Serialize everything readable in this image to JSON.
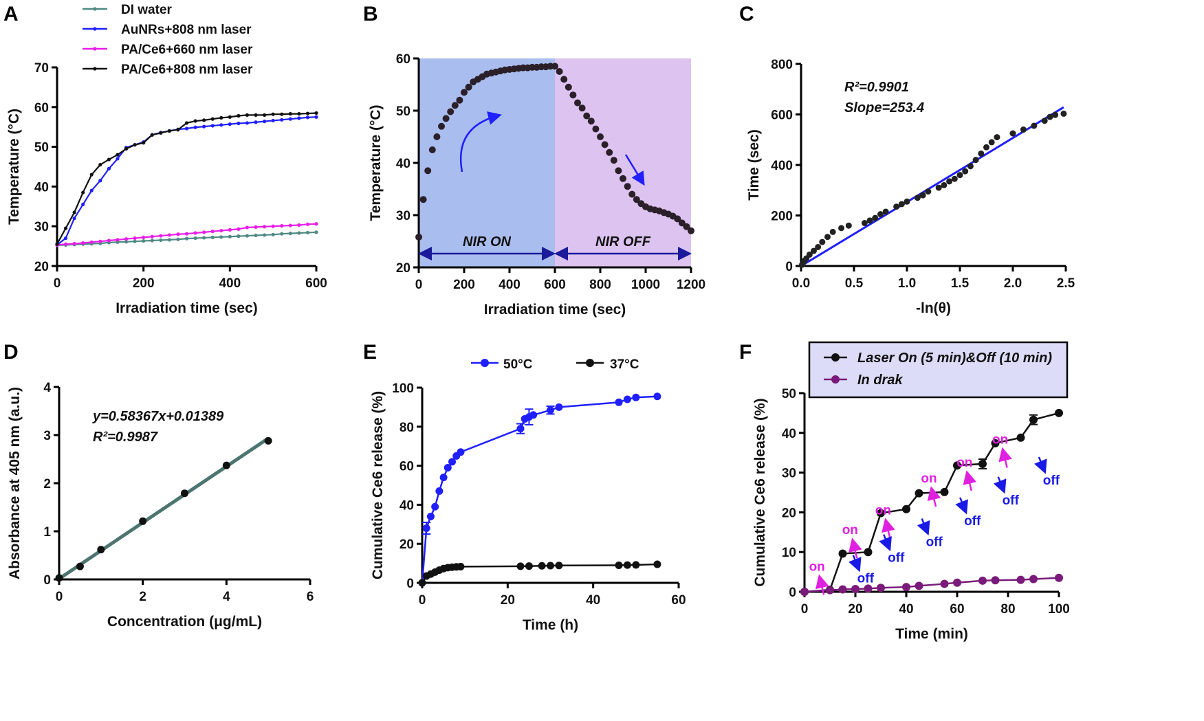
{
  "panels": [
    "A",
    "B",
    "C",
    "D",
    "E",
    "F"
  ],
  "chart_data": [
    {
      "panel": "A",
      "type": "line",
      "xlabel": "Irradiation time (sec)",
      "ylabel": "Temperature (°C)",
      "xlim": [
        0,
        600
      ],
      "ylim": [
        20,
        70
      ],
      "xticks": [
        "0",
        "200",
        "400",
        "600"
      ],
      "yticks": [
        "20",
        "30",
        "40",
        "50",
        "60",
        "70"
      ],
      "legend": "top",
      "x": [
        0,
        20,
        40,
        60,
        80,
        100,
        120,
        140,
        160,
        180,
        200,
        220,
        240,
        260,
        280,
        300,
        320,
        340,
        360,
        380,
        400,
        420,
        440,
        460,
        480,
        500,
        520,
        540,
        560,
        580,
        600
      ],
      "series": [
        {
          "name": "DI water",
          "color": "#4f8a84",
          "y": [
            25.2,
            25.3,
            25.4,
            25.5,
            25.6,
            25.7,
            25.9,
            26.0,
            26.1,
            26.2,
            26.3,
            26.4,
            26.5,
            26.6,
            26.7,
            26.9,
            27.0,
            27.1,
            27.2,
            27.3,
            27.4,
            27.5,
            27.6,
            27.7,
            27.8,
            27.9,
            28.1,
            28.2,
            28.3,
            28.4,
            28.5
          ]
        },
        {
          "name": "AuNRs+808 nm laser",
          "color": "#1f1fff",
          "y": [
            25.3,
            27,
            32,
            35.5,
            39,
            41.5,
            44.5,
            47,
            49.8,
            50.5,
            51.2,
            53,
            53.6,
            54,
            54.4,
            54.6,
            54.9,
            55.1,
            55.3,
            55.5,
            55.7,
            55.9,
            56,
            56.2,
            56.4,
            56.6,
            56.8,
            57,
            57.2,
            57.4,
            57.5
          ]
        },
        {
          "name": "PA/Ce6+660 nm laser",
          "color": "#e81ee8",
          "y": [
            25.3,
            25.5,
            25.6,
            25.8,
            26.0,
            26.2,
            26.4,
            26.6,
            26.8,
            27.0,
            27.2,
            27.4,
            27.6,
            27.8,
            28.0,
            28.1,
            28.3,
            28.5,
            28.7,
            28.9,
            29.1,
            29.3,
            29.7,
            29.8,
            29.9,
            30.0,
            30.1,
            30.2,
            30.3,
            30.5,
            30.6
          ]
        },
        {
          "name": "PA/Ce6+808 nm laser",
          "color": "#111111",
          "y": [
            25.5,
            29.5,
            33.5,
            38.5,
            43,
            45.5,
            46.8,
            48,
            49.5,
            50.5,
            51,
            53,
            53.5,
            54,
            54.3,
            56,
            56.5,
            56.7,
            57,
            57.3,
            57.5,
            57.8,
            58,
            58,
            58,
            58.2,
            58.2,
            58.3,
            58.3,
            58.4,
            58.5
          ]
        }
      ]
    },
    {
      "panel": "B",
      "type": "scatter",
      "xlabel": "Irradiation time (sec)",
      "ylabel": "Temperature (°C)",
      "xlim": [
        0,
        1200
      ],
      "ylim": [
        20,
        60
      ],
      "xticks": [
        "0",
        "200",
        "400",
        "600",
        "800",
        "1000",
        "1200"
      ],
      "yticks": [
        "20",
        "30",
        "40",
        "50",
        "60"
      ],
      "regions": [
        {
          "label": "NIR ON",
          "range": [
            0,
            600
          ],
          "color": "#a9bdee"
        },
        {
          "label": "NIR OFF",
          "range": [
            600,
            1200
          ],
          "color": "#dcc3f0"
        }
      ],
      "x": [
        0,
        20,
        40,
        60,
        80,
        100,
        120,
        140,
        160,
        180,
        200,
        220,
        240,
        260,
        280,
        300,
        320,
        340,
        360,
        380,
        400,
        420,
        440,
        460,
        480,
        500,
        520,
        540,
        560,
        580,
        600,
        620,
        640,
        660,
        680,
        700,
        720,
        740,
        760,
        780,
        800,
        820,
        840,
        860,
        880,
        900,
        920,
        940,
        960,
        980,
        1000,
        1020,
        1040,
        1060,
        1080,
        1100,
        1120,
        1140,
        1160,
        1180,
        1200
      ],
      "series": [
        {
          "color": "#2b2029",
          "y": [
            25.8,
            33,
            38.5,
            42.5,
            45,
            47,
            48.5,
            49.8,
            51,
            52,
            53.5,
            54.5,
            55.5,
            56,
            56.5,
            57,
            57.2,
            57.4,
            57.6,
            57.8,
            57.9,
            58,
            58.1,
            58.2,
            58.2,
            58.3,
            58.3,
            58.4,
            58.4,
            58.5,
            58.5,
            57.5,
            56,
            54.5,
            53,
            51.5,
            50.5,
            49,
            48,
            46.5,
            45,
            43.5,
            42,
            40.5,
            38.5,
            37,
            35.5,
            34,
            33,
            32.2,
            31.6,
            31.2,
            31,
            30.8,
            30.5,
            30.2,
            29.8,
            29.3,
            28.5,
            27.8,
            27.0
          ]
        }
      ]
    },
    {
      "panel": "C",
      "type": "scatter",
      "xlabel": "-ln(θ)",
      "ylabel": "Time (sec)",
      "xlim": [
        0,
        2.5
      ],
      "ylim": [
        0,
        800
      ],
      "xticks": [
        "0.0",
        "0.5",
        "1.0",
        "1.5",
        "2.0",
        "2.5"
      ],
      "yticks": [
        "0",
        "200",
        "400",
        "600",
        "800"
      ],
      "annotations": [
        "R²=0.9901",
        "Slope=253.4"
      ],
      "fit": {
        "slope": 253.4,
        "intercept": 0,
        "color": "#1f1fff",
        "range": [
          0,
          2.48
        ]
      },
      "x": [
        0.01,
        0.03,
        0.05,
        0.08,
        0.12,
        0.16,
        0.2,
        0.25,
        0.3,
        0.38,
        0.45,
        0.6,
        0.65,
        0.7,
        0.75,
        0.8,
        0.9,
        0.95,
        1.0,
        1.1,
        1.15,
        1.2,
        1.3,
        1.35,
        1.4,
        1.45,
        1.5,
        1.55,
        1.6,
        1.65,
        1.7,
        1.75,
        1.8,
        1.85,
        2.0,
        2.1,
        2.2,
        2.3,
        2.35,
        2.4,
        2.48
      ],
      "series": [
        {
          "color": "#222222",
          "y": [
            5,
            20,
            30,
            45,
            60,
            75,
            95,
            115,
            135,
            150,
            160,
            170,
            180,
            190,
            205,
            215,
            235,
            245,
            255,
            270,
            280,
            295,
            310,
            320,
            335,
            345,
            360,
            375,
            395,
            420,
            445,
            470,
            490,
            510,
            525,
            540,
            555,
            575,
            590,
            598,
            603
          ]
        }
      ]
    },
    {
      "panel": "D",
      "type": "scatter",
      "xlabel": "Concentration  (μg/mL)",
      "ylabel": "Absorbance at 405 nm (a.u.)",
      "xlim": [
        0,
        6
      ],
      "ylim": [
        0,
        4
      ],
      "xticks": [
        "0",
        "2",
        "4",
        "6"
      ],
      "yticks": [
        "0",
        "1",
        "2",
        "3",
        "4"
      ],
      "annotations": [
        "y=0.58367x+0.01389",
        "R²=0.9987"
      ],
      "fit": {
        "slope": 0.58367,
        "intercept": 0.01389,
        "color": "#4c7570",
        "range": [
          0,
          5
        ]
      },
      "x": [
        0,
        0.5,
        1,
        2,
        3,
        4,
        5
      ],
      "series": [
        {
          "color": "#111111",
          "y": [
            0.03,
            0.27,
            0.62,
            1.21,
            1.79,
            2.37,
            2.88
          ]
        }
      ]
    },
    {
      "panel": "E",
      "type": "line",
      "xlabel": "Time (h)",
      "ylabel": "Cumulative Ce6 release (%)",
      "xlim": [
        0,
        60
      ],
      "ylim": [
        0,
        100
      ],
      "xticks": [
        "0",
        "20",
        "40",
        "60"
      ],
      "yticks": [
        "0",
        "20",
        "40",
        "60",
        "80",
        "100"
      ],
      "legend": "top",
      "series": [
        {
          "name": "50°C",
          "color": "#1f1fff",
          "x": [
            0,
            1,
            2,
            3,
            4,
            5,
            6,
            7,
            8,
            9,
            23,
            24,
            25,
            26,
            30,
            32,
            46,
            48,
            50,
            55
          ],
          "y": [
            0,
            28,
            34,
            39,
            47,
            54,
            59,
            62,
            65,
            67,
            79,
            84,
            85,
            86,
            88.5,
            90,
            92.5,
            94,
            95,
            95.5
          ],
          "err": [
            0,
            3,
            0,
            0,
            0,
            0,
            0,
            0,
            0,
            0,
            2.5,
            0,
            4,
            0,
            2,
            0,
            0,
            0,
            0,
            0
          ]
        },
        {
          "name": "37°C",
          "color": "#111111",
          "x": [
            0,
            1,
            2,
            3,
            4,
            5,
            6,
            7,
            8,
            9,
            23,
            25,
            28,
            30,
            32,
            46,
            48,
            50,
            55
          ],
          "y": [
            0,
            3.5,
            4.5,
            5.5,
            6.5,
            7.3,
            7.8,
            8,
            8.2,
            8.3,
            8.5,
            8.6,
            8.7,
            8.8,
            8.9,
            9,
            9.1,
            9.2,
            9.5
          ]
        }
      ]
    },
    {
      "panel": "F",
      "type": "line",
      "xlabel": "Time (min)",
      "ylabel": "Cumulative Ce6 release (%)",
      "xlim": [
        0,
        100
      ],
      "ylim": [
        0,
        50
      ],
      "xticks": [
        "0",
        "20",
        "40",
        "60",
        "80",
        "100"
      ],
      "yticks": [
        "0",
        "10",
        "20",
        "30",
        "40",
        "50"
      ],
      "legend": "top-boxed",
      "legend_bg": "#dcdcf8",
      "on_label": "on",
      "off_label": "off",
      "on_color": "#e020e0",
      "off_color": "#1a1ae6",
      "series": [
        {
          "name": "Laser On (5 min)&Off (10 min)",
          "color": "#111111",
          "x": [
            0,
            10,
            15,
            25,
            30,
            40,
            45,
            55,
            60,
            70,
            75,
            85,
            90,
            100
          ],
          "y": [
            0,
            0.5,
            9.6,
            10,
            19.8,
            20.8,
            24.8,
            25.1,
            31.8,
            32.2,
            37.4,
            38.8,
            43.3,
            45
          ],
          "err": [
            0,
            0,
            0,
            0,
            0,
            0,
            0,
            0,
            0,
            1.2,
            0,
            0,
            1.2,
            0
          ]
        },
        {
          "name": "In drak",
          "color": "#7a1a7a",
          "x": [
            0,
            10,
            15,
            20,
            25,
            30,
            40,
            45,
            55,
            60,
            70,
            75,
            85,
            90,
            100
          ],
          "y": [
            0,
            0.4,
            0.6,
            0.7,
            0.8,
            1,
            1.2,
            1.5,
            2,
            2.3,
            2.8,
            2.9,
            3,
            3.2,
            3.5
          ]
        }
      ]
    }
  ]
}
